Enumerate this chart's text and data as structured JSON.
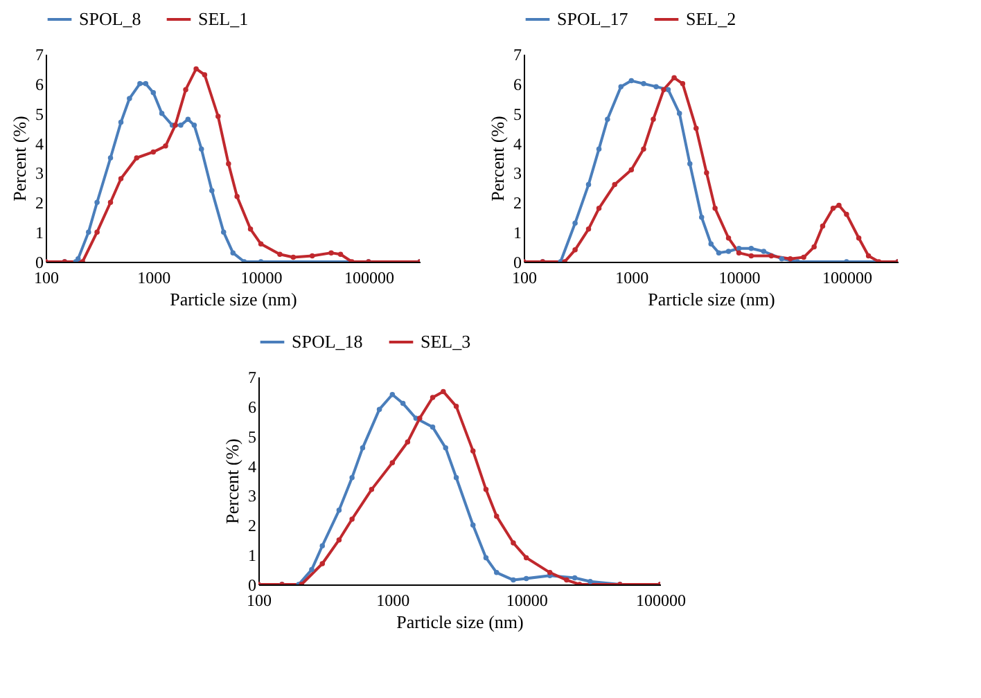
{
  "chart_data": [
    {
      "type": "line",
      "xlabel": "Particle size (nm)",
      "ylabel": "Percent (%)",
      "log": "x",
      "xlim": [
        100,
        300000
      ],
      "xticks": [
        100,
        1000,
        10000,
        100000
      ],
      "ylim": [
        0,
        7
      ],
      "yticks": [
        0,
        1,
        2,
        3,
        4,
        5,
        6,
        7
      ],
      "grid": false,
      "legend": "top",
      "marker": "circle",
      "line_style": "solid",
      "series": [
        {
          "name": "SPOL_8",
          "color": "#4a7ebb",
          "x": [
            100,
            150,
            190,
            200,
            250,
            300,
            400,
            500,
            600,
            750,
            850,
            1000,
            1200,
            1500,
            1800,
            2100,
            2400,
            2800,
            3500,
            4500,
            5500,
            7000,
            10000,
            100000,
            300000
          ],
          "values": [
            0,
            0,
            0,
            0.1,
            1,
            2,
            3.5,
            4.7,
            5.5,
            6.0,
            6.0,
            5.7,
            5.0,
            4.6,
            4.6,
            4.8,
            4.6,
            3.8,
            2.4,
            1.0,
            0.3,
            0,
            0,
            0,
            0
          ]
        },
        {
          "name": "SEL_1",
          "color": "#c0282d",
          "x": [
            100,
            150,
            220,
            300,
            400,
            500,
            700,
            1000,
            1300,
            1600,
            2000,
            2500,
            3000,
            4000,
            5000,
            6000,
            8000,
            10000,
            15000,
            20000,
            30000,
            45000,
            55000,
            70000,
            100000,
            300000
          ],
          "values": [
            0,
            0,
            0,
            1,
            2,
            2.8,
            3.5,
            3.7,
            3.9,
            4.6,
            5.8,
            6.5,
            6.3,
            4.9,
            3.3,
            2.2,
            1.1,
            0.6,
            0.25,
            0.15,
            0.2,
            0.3,
            0.25,
            0,
            0,
            0
          ]
        }
      ]
    },
    {
      "type": "line",
      "xlabel": "Particle size (nm)",
      "ylabel": "Percent (%)",
      "log": "x",
      "xlim": [
        100,
        300000
      ],
      "xticks": [
        100,
        1000,
        10000,
        100000
      ],
      "ylim": [
        0,
        7
      ],
      "yticks": [
        0,
        1,
        2,
        3,
        4,
        5,
        6,
        7
      ],
      "grid": false,
      "legend": "top",
      "marker": "circle",
      "line_style": "solid",
      "series": [
        {
          "name": "SPOL_17",
          "color": "#4a7ebb",
          "x": [
            100,
            150,
            220,
            300,
            400,
            500,
            600,
            800,
            1000,
            1300,
            1700,
            2200,
            2800,
            3500,
            4500,
            5500,
            6500,
            8000,
            10000,
            13000,
            17000,
            25000,
            35000,
            100000,
            300000
          ],
          "values": [
            0,
            0,
            0,
            1.3,
            2.6,
            3.8,
            4.8,
            5.9,
            6.1,
            6.0,
            5.9,
            5.8,
            5.0,
            3.3,
            1.5,
            0.6,
            0.3,
            0.35,
            0.45,
            0.45,
            0.35,
            0.1,
            0,
            0,
            0
          ]
        },
        {
          "name": "SEL_2",
          "color": "#c0282d",
          "x": [
            100,
            150,
            240,
            300,
            400,
            500,
            700,
            1000,
            1300,
            1600,
            2000,
            2500,
            3000,
            4000,
            5000,
            6000,
            8000,
            10000,
            13000,
            20000,
            30000,
            40000,
            50000,
            60000,
            75000,
            85000,
            100000,
            130000,
            160000,
            200000,
            300000
          ],
          "values": [
            0,
            0,
            0,
            0.4,
            1.1,
            1.8,
            2.6,
            3.1,
            3.8,
            4.8,
            5.8,
            6.2,
            6.0,
            4.5,
            3.0,
            1.8,
            0.8,
            0.3,
            0.2,
            0.2,
            0.1,
            0.15,
            0.5,
            1.2,
            1.8,
            1.9,
            1.6,
            0.8,
            0.2,
            0,
            0
          ]
        }
      ]
    },
    {
      "type": "line",
      "xlabel": "Particle size (nm)",
      "ylabel": "Percent (%)",
      "log": "x",
      "xlim": [
        100,
        100000
      ],
      "xticks": [
        100,
        1000,
        10000,
        100000
      ],
      "ylim": [
        0,
        7
      ],
      "yticks": [
        0,
        1,
        2,
        3,
        4,
        5,
        6,
        7
      ],
      "grid": false,
      "legend": "top",
      "marker": "circle",
      "line_style": "solid",
      "series": [
        {
          "name": "SPOL_18",
          "color": "#4a7ebb",
          "x": [
            100,
            150,
            200,
            250,
            300,
            400,
            500,
            600,
            800,
            1000,
            1200,
            1500,
            2000,
            2500,
            3000,
            4000,
            5000,
            6000,
            8000,
            10000,
            15000,
            23000,
            30000,
            50000,
            100000
          ],
          "values": [
            0,
            0,
            0,
            0.5,
            1.3,
            2.5,
            3.6,
            4.6,
            5.9,
            6.4,
            6.1,
            5.6,
            5.3,
            4.6,
            3.6,
            2.0,
            0.9,
            0.4,
            0.15,
            0.2,
            0.3,
            0.22,
            0.1,
            0,
            0
          ]
        },
        {
          "name": "SEL_3",
          "color": "#c0282d",
          "x": [
            100,
            150,
            210,
            300,
            400,
            500,
            700,
            1000,
            1300,
            1600,
            2000,
            2400,
            3000,
            4000,
            5000,
            6000,
            8000,
            10000,
            15000,
            20000,
            25000,
            50000,
            100000
          ],
          "values": [
            0,
            0,
            0,
            0.7,
            1.5,
            2.2,
            3.2,
            4.1,
            4.8,
            5.6,
            6.3,
            6.5,
            6.0,
            4.5,
            3.2,
            2.3,
            1.4,
            0.9,
            0.4,
            0.15,
            0,
            0,
            0
          ]
        }
      ]
    }
  ]
}
